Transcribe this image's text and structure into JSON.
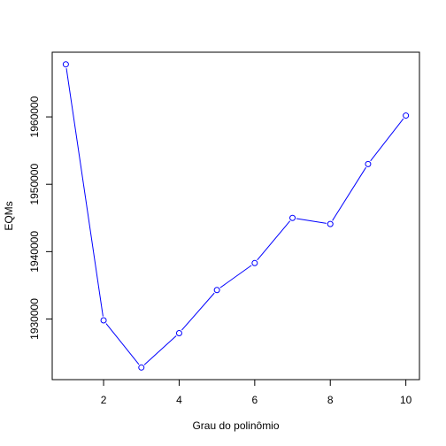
{
  "chart_data": {
    "type": "line",
    "title": "",
    "xlabel": "Grau do polinômio",
    "ylabel": "EQMs",
    "x": [
      1,
      2,
      3,
      4,
      5,
      6,
      7,
      8,
      9,
      10
    ],
    "series": [
      {
        "values": [
          1967800,
          1929800,
          1922800,
          1927900,
          1934300,
          1938300,
          1945000,
          1944100,
          1953000,
          1960200
        ]
      }
    ],
    "x_ticks": [
      2,
      4,
      6,
      8,
      10
    ],
    "y_ticks": [
      1930000,
      1940000,
      1950000,
      1960000
    ],
    "x_tick_labels": [
      "2",
      "4",
      "6",
      "8",
      "10"
    ],
    "y_tick_labels": [
      "1930000",
      "1940000",
      "1950000",
      "1960000"
    ],
    "xlim": [
      0.64,
      10.36
    ],
    "ylim": [
      1921000,
      1969600
    ],
    "grid": false,
    "legend": "none",
    "colors": {
      "series": "#0000ff",
      "axis": "#000000"
    },
    "marker": "open-circle"
  }
}
